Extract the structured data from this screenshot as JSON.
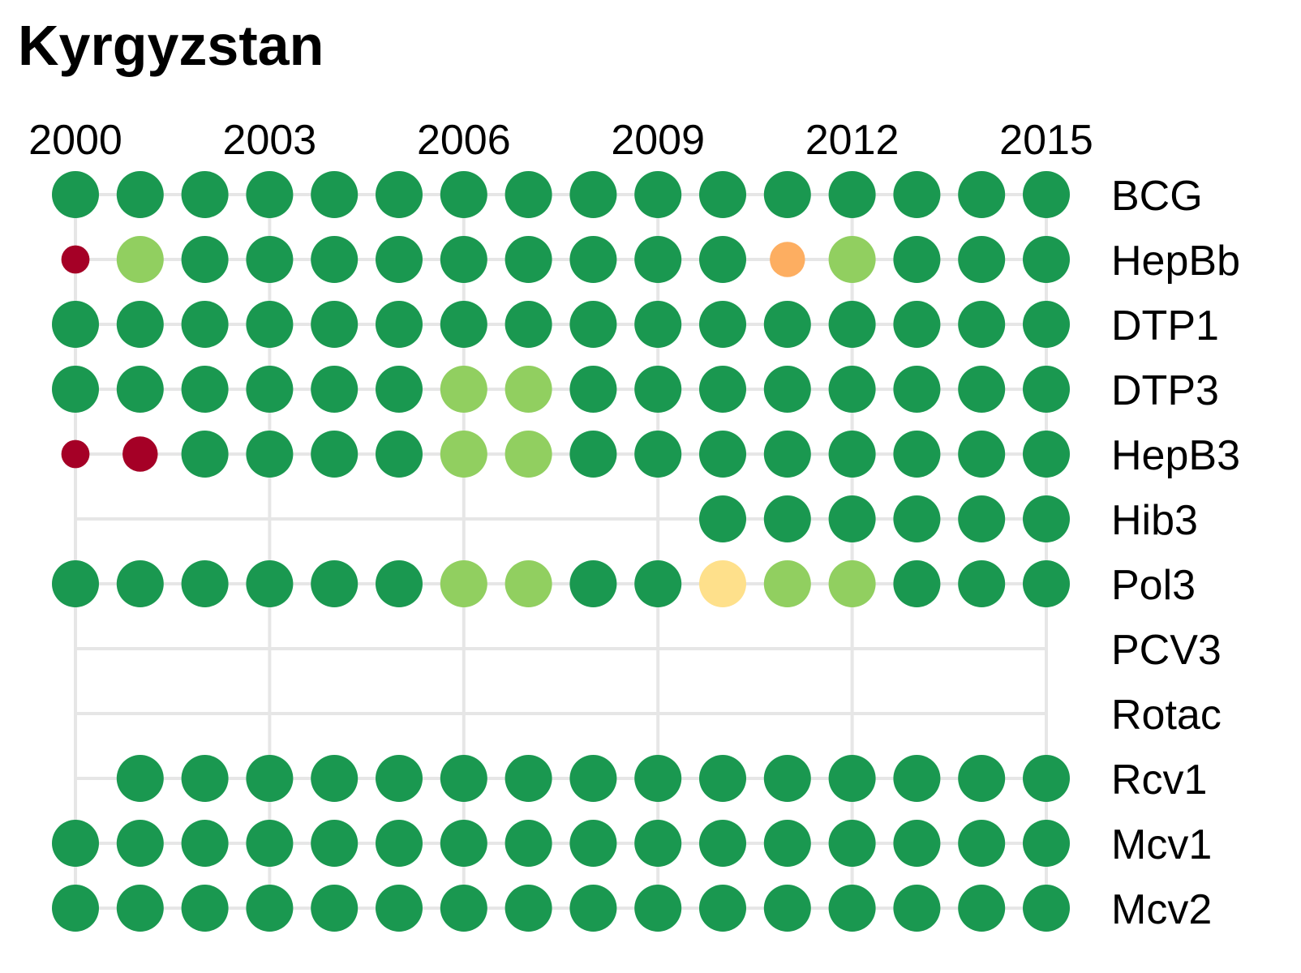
{
  "chart_data": {
    "type": "dot-matrix",
    "title": "Kyrgyzstan",
    "years": [
      2000,
      2001,
      2002,
      2003,
      2004,
      2005,
      2006,
      2007,
      2008,
      2009,
      2010,
      2011,
      2012,
      2013,
      2014,
      2015
    ],
    "x_tick_labels": [
      "2000",
      "2003",
      "2006",
      "2009",
      "2012",
      "2015"
    ],
    "legend": {
      "position": "none"
    },
    "grid": true,
    "colors": {
      "red": "#a50026",
      "orange": "#fdae61",
      "yellow": "#fee08b",
      "lightgreen": "#91cf60",
      "green": "#1a9850",
      "grid": "#e6e6e6"
    },
    "sizes": {
      "large": 1.0,
      "medium": 0.75,
      "small": 0.6
    },
    "rows": [
      {
        "label": "BCG",
        "values": [
          "green",
          "green",
          "green",
          "green",
          "green",
          "green",
          "green",
          "green",
          "green",
          "green",
          "green",
          "green",
          "green",
          "green",
          "green",
          "green"
        ]
      },
      {
        "label": "HepBb",
        "values": [
          "red:small",
          "lightgreen",
          "green",
          "green",
          "green",
          "green",
          "green",
          "green",
          "green",
          "green",
          "green",
          "orange:medium",
          "lightgreen",
          "green",
          "green",
          "green"
        ]
      },
      {
        "label": "DTP1",
        "values": [
          "green",
          "green",
          "green",
          "green",
          "green",
          "green",
          "green",
          "green",
          "green",
          "green",
          "green",
          "green",
          "green",
          "green",
          "green",
          "green"
        ]
      },
      {
        "label": "DTP3",
        "values": [
          "green",
          "green",
          "green",
          "green",
          "green",
          "green",
          "lightgreen",
          "lightgreen",
          "green",
          "green",
          "green",
          "green",
          "green",
          "green",
          "green",
          "green"
        ]
      },
      {
        "label": "HepB3",
        "values": [
          "red:small",
          "red:medium",
          "green",
          "green",
          "green",
          "green",
          "lightgreen",
          "lightgreen",
          "green",
          "green",
          "green",
          "green",
          "green",
          "green",
          "green",
          "green"
        ]
      },
      {
        "label": "Hib3",
        "values": [
          null,
          null,
          null,
          null,
          null,
          null,
          null,
          null,
          null,
          null,
          "green",
          "green",
          "green",
          "green",
          "green",
          "green"
        ]
      },
      {
        "label": "Pol3",
        "values": [
          "green",
          "green",
          "green",
          "green",
          "green",
          "green",
          "lightgreen",
          "lightgreen",
          "green",
          "green",
          "yellow",
          "lightgreen",
          "lightgreen",
          "green",
          "green",
          "green"
        ]
      },
      {
        "label": "PCV3",
        "values": [
          null,
          null,
          null,
          null,
          null,
          null,
          null,
          null,
          null,
          null,
          null,
          null,
          null,
          null,
          null,
          null
        ]
      },
      {
        "label": "Rotac",
        "values": [
          null,
          null,
          null,
          null,
          null,
          null,
          null,
          null,
          null,
          null,
          null,
          null,
          null,
          null,
          null,
          null
        ]
      },
      {
        "label": "Rcv1",
        "values": [
          null,
          "green",
          "green",
          "green",
          "green",
          "green",
          "green",
          "green",
          "green",
          "green",
          "green",
          "green",
          "green",
          "green",
          "green",
          "green"
        ]
      },
      {
        "label": "Mcv1",
        "values": [
          "green",
          "green",
          "green",
          "green",
          "green",
          "green",
          "green",
          "green",
          "green",
          "green",
          "green",
          "green",
          "green",
          "green",
          "green",
          "green"
        ]
      },
      {
        "label": "Mcv2",
        "values": [
          "green",
          "green",
          "green",
          "green",
          "green",
          "green",
          "green",
          "green",
          "green",
          "green",
          "green",
          "green",
          "green",
          "green",
          "green",
          "green"
        ]
      }
    ]
  }
}
